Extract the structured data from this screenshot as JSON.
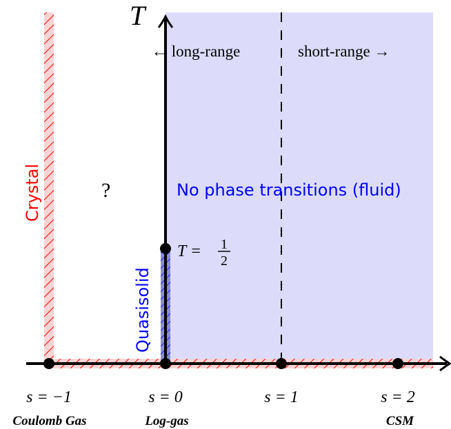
{
  "axes": {
    "y_label": "T"
  },
  "regions": {
    "long_range": "← long-range",
    "short_range": "short-range →",
    "fluid": "No phase transitions (fluid)",
    "unknown": "?",
    "crystal": "Crystal",
    "quasisolid": "Quasisolid"
  },
  "temperature_marker": {
    "prefix": "T =",
    "numerator": "1",
    "denominator": "2"
  },
  "ticks": [
    {
      "label": "s = −1",
      "model": "Coulomb Gas"
    },
    {
      "label": "s = 0",
      "model": "Log-gas"
    },
    {
      "label": "s = 1",
      "model": ""
    },
    {
      "label": "s = 2",
      "model": "CSM"
    }
  ],
  "colors": {
    "fluid_fill": "#dcdcfa",
    "crystal_red": "#ff0000",
    "crystal_fill": "#f9d4d4",
    "quasisolid_blue": "#0000ff",
    "quasisolid_fill": "#8c8cd8",
    "axis": "#000000"
  }
}
